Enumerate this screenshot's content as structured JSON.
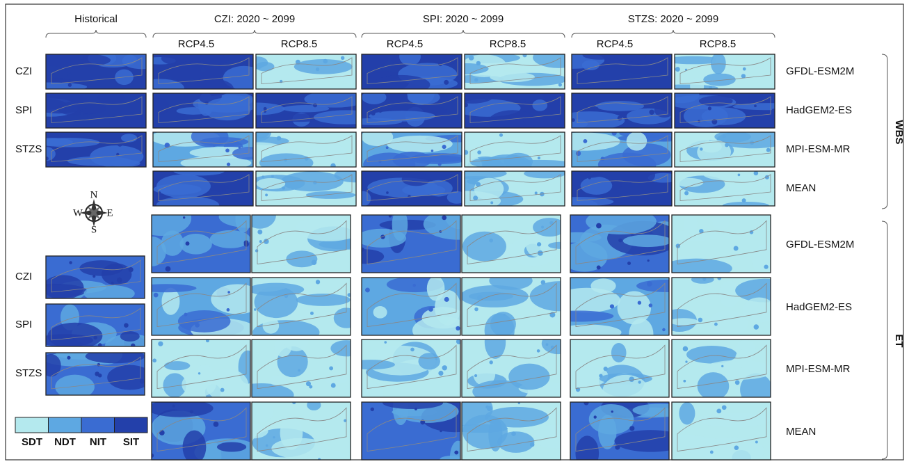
{
  "header": {
    "historical": "Historical",
    "groups": [
      "CZI: 2020 ~ 2099",
      "SPI: 2020 ~ 2099",
      "STZS: 2020 ~ 2099"
    ],
    "scenarios": [
      "RCP4.5",
      "RCP8.5"
    ]
  },
  "indices": [
    "CZI",
    "SPI",
    "STZS"
  ],
  "models": [
    "GFDL-ESM2M",
    "HadGEM2-ES",
    "MPI-ESM-MR",
    "MEAN"
  ],
  "regions": [
    "WBS",
    "ET"
  ],
  "compass": [
    "N",
    "E",
    "S",
    "W"
  ],
  "legend": {
    "items": [
      {
        "label": "SDT",
        "color": "#b4e9ee"
      },
      {
        "label": "NDT",
        "color": "#5ea8e2"
      },
      {
        "label": "NIT",
        "color": "#3a6cd2"
      },
      {
        "label": "SIT",
        "color": "#2340aa"
      }
    ]
  }
}
